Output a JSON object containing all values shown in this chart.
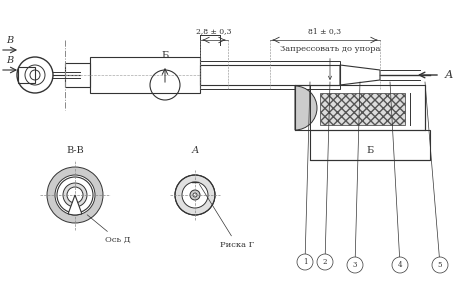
{
  "title": "",
  "bg_color": "#f0f0f0",
  "line_color": "#333333",
  "hatch_color": "#555555",
  "dim_color": "#444444",
  "labels": {
    "B_top": "В",
    "B_bottom": "В",
    "Б": "Б",
    "A": "А",
    "dim1": "2,8 ± 0,3",
    "dim2": "81 ± 0,3",
    "annotation": "Запрессовать до упора",
    "section_BB": "В-В",
    "section_A": "А",
    "section_Б": "Б",
    "axis_D": "Ось Д",
    "mark_G": "Риска Г",
    "items": [
      "1",
      "2",
      "3",
      "4",
      "5"
    ]
  }
}
